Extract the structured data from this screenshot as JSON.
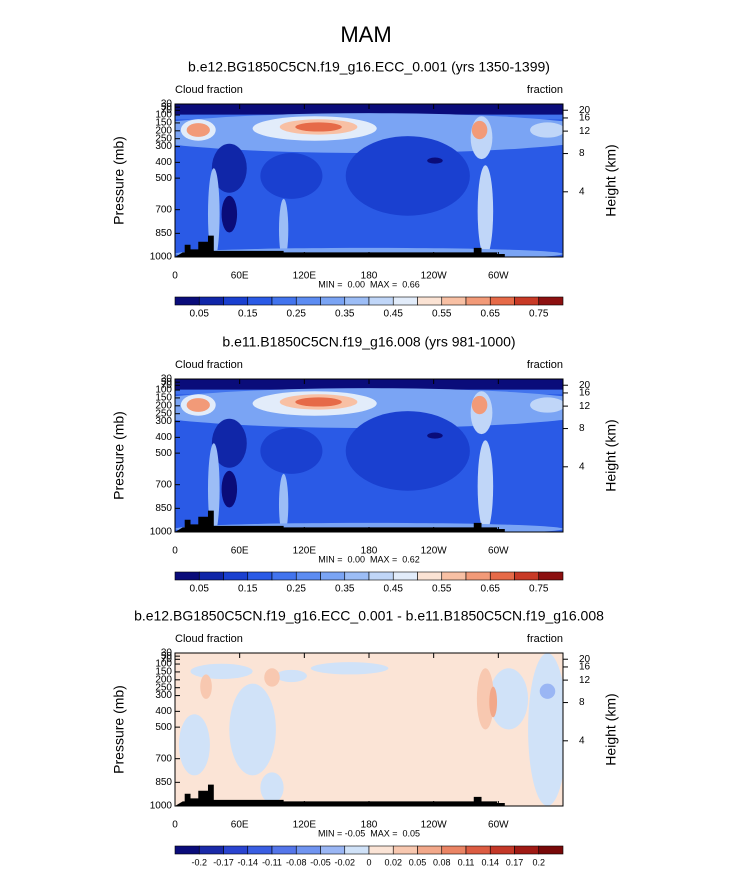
{
  "figure_title": "MAM",
  "chart_data": [
    {
      "type": "contour",
      "title": "b.e12.BG1850C5CN.f19_g16.ECC_0.001 (yrs 1350-1399)",
      "left_label": "Cloud fraction",
      "right_label": "fraction",
      "ylabel": "Pressure (mb)",
      "y2label": "Height (km)",
      "stats": "MIN =  0.00  MAX =  0.66",
      "xlim": [
        0,
        360
      ],
      "xticks": [
        0,
        {
          "value": 60,
          "label": "60E"
        },
        {
          "value": 120,
          "label": "120E"
        },
        180,
        {
          "value": 240,
          "label": "120W"
        },
        {
          "value": 300,
          "label": "60W"
        }
      ],
      "ylim": [
        1000,
        30
      ],
      "yticks": [
        1000,
        850,
        700,
        500,
        400,
        300,
        250,
        200,
        150,
        100,
        70,
        50,
        30
      ],
      "y2ticks": [
        4,
        8,
        12,
        16,
        20
      ],
      "colorbar": {
        "colors": [
          "#0a0c7a",
          "#1026a8",
          "#1a40d0",
          "#2a5ae6",
          "#4274ee",
          "#5c8cf2",
          "#7aa4f4",
          "#9cbdf6",
          "#c0d6f8",
          "#e2ecfa",
          "#fbe3d4",
          "#f8c0a4",
          "#f29a78",
          "#e66a48",
          "#c83a26",
          "#8c1010"
        ],
        "ticks": [
          0.05,
          0.15,
          0.25,
          0.35,
          0.45,
          0.55,
          0.65,
          0.75
        ]
      }
    },
    {
      "type": "contour",
      "title": "b.e11.B1850C5CN.f19_g16.008 (yrs 981-1000)",
      "left_label": "Cloud fraction",
      "right_label": "fraction",
      "ylabel": "Pressure (mb)",
      "y2label": "Height (km)",
      "stats": "MIN =  0.00  MAX =  0.62",
      "xlim": [
        0,
        360
      ],
      "xticks": [
        0,
        {
          "value": 60,
          "label": "60E"
        },
        {
          "value": 120,
          "label": "120E"
        },
        180,
        {
          "value": 240,
          "label": "120W"
        },
        {
          "value": 300,
          "label": "60W"
        }
      ],
      "ylim": [
        1000,
        30
      ],
      "yticks": [
        1000,
        850,
        700,
        500,
        400,
        300,
        250,
        200,
        150,
        100,
        70,
        50,
        30
      ],
      "y2ticks": [
        4,
        8,
        12,
        16,
        20
      ],
      "colorbar": {
        "colors": [
          "#0a0c7a",
          "#1026a8",
          "#1a40d0",
          "#2a5ae6",
          "#4274ee",
          "#5c8cf2",
          "#7aa4f4",
          "#9cbdf6",
          "#c0d6f8",
          "#e2ecfa",
          "#fbe3d4",
          "#f8c0a4",
          "#f29a78",
          "#e66a48",
          "#c83a26",
          "#8c1010"
        ],
        "ticks": [
          0.05,
          0.15,
          0.25,
          0.35,
          0.45,
          0.55,
          0.65,
          0.75
        ]
      }
    },
    {
      "type": "contour",
      "title": "b.e12.BG1850C5CN.f19_g16.ECC_0.001 - b.e11.B1850C5CN.f19_g16.008",
      "left_label": "Cloud fraction",
      "right_label": "fraction",
      "ylabel": "Pressure (mb)",
      "y2label": "Height (km)",
      "stats": "MIN = -0.05  MAX =  0.05",
      "xlim": [
        0,
        360
      ],
      "xticks": [
        0,
        {
          "value": 60,
          "label": "60E"
        },
        {
          "value": 120,
          "label": "120E"
        },
        180,
        {
          "value": 240,
          "label": "120W"
        },
        {
          "value": 300,
          "label": "60W"
        }
      ],
      "ylim": [
        1000,
        30
      ],
      "yticks": [
        1000,
        850,
        700,
        500,
        400,
        300,
        250,
        200,
        150,
        100,
        70,
        50,
        30
      ],
      "y2ticks": [
        4,
        8,
        12,
        16,
        20
      ],
      "colorbar": {
        "colors": [
          "#0a0c7a",
          "#1a2aa8",
          "#2a44d0",
          "#3a5ee2",
          "#5476ea",
          "#7094f0",
          "#9ab6f4",
          "#d0e2f8",
          "#fbe4d6",
          "#f8c8b0",
          "#f2a88a",
          "#ea8464",
          "#dc5c42",
          "#c43828",
          "#a01a14",
          "#780808"
        ],
        "ticks": [
          -0.2,
          -0.17,
          -0.14,
          -0.11,
          -0.08,
          -0.05,
          -0.02,
          0,
          0.02,
          0.05,
          0.08,
          0.11,
          0.14,
          0.17,
          0.2
        ]
      }
    }
  ]
}
